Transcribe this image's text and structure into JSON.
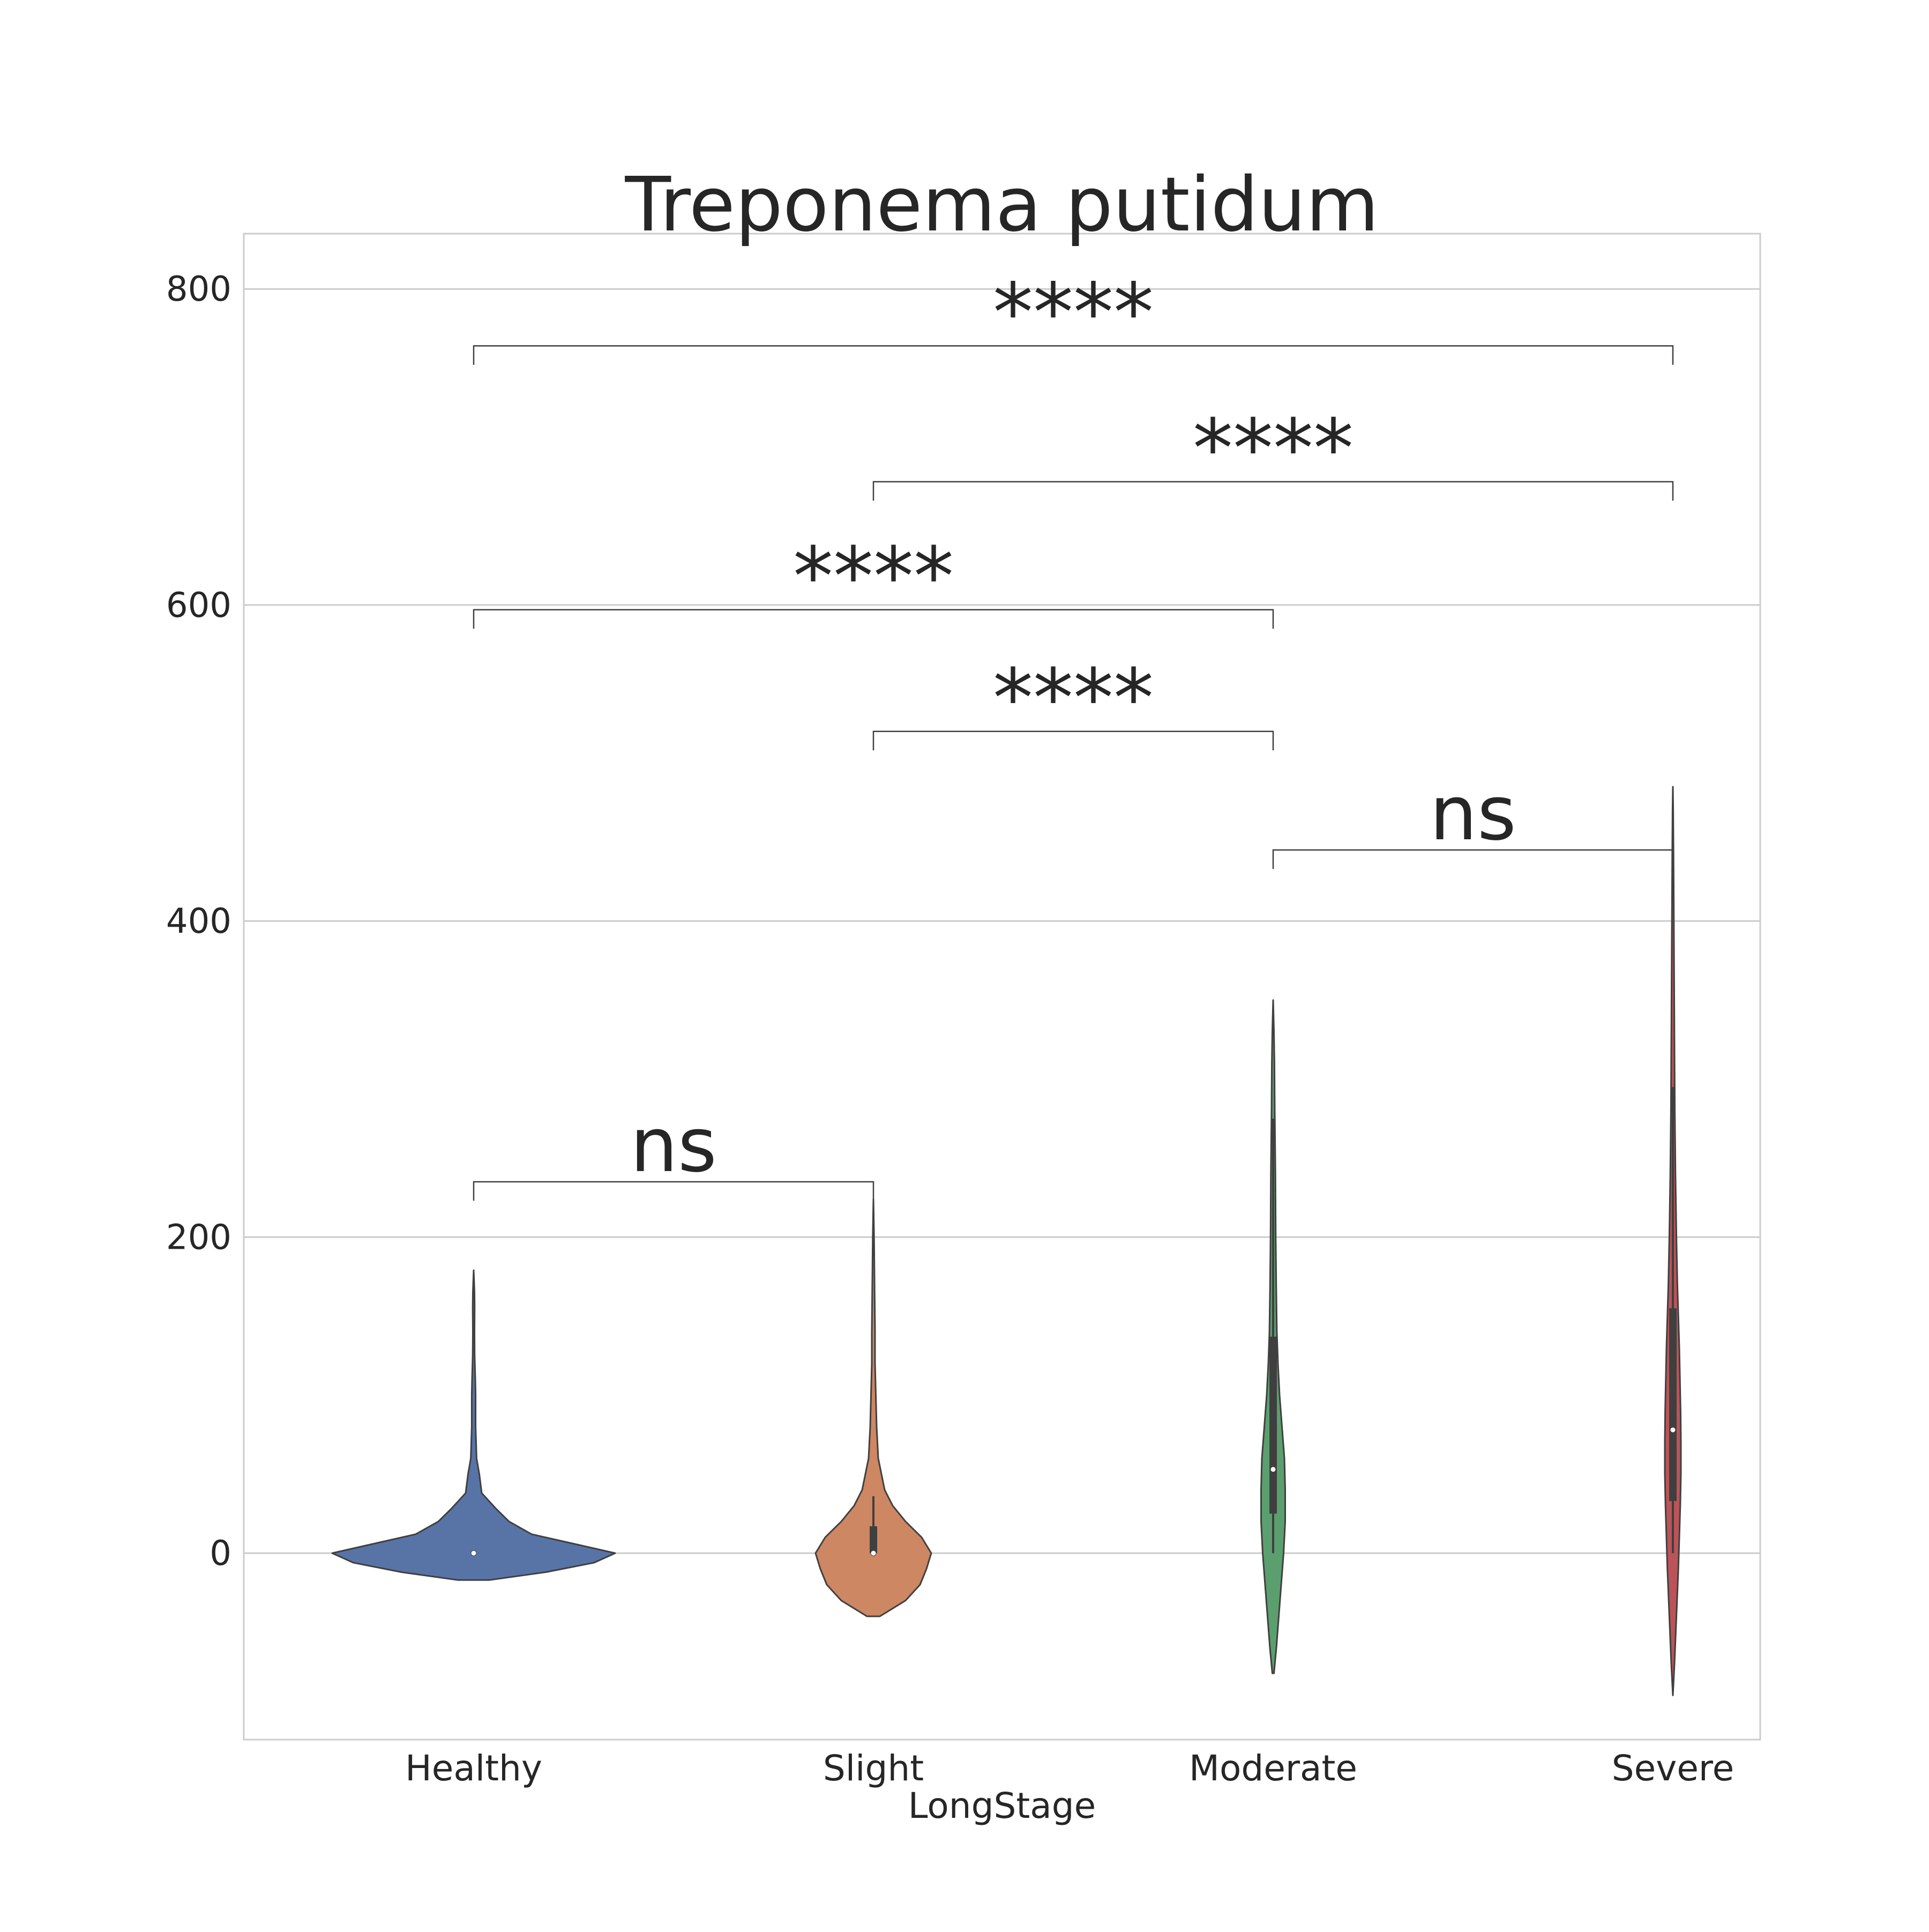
{
  "chart_data": {
    "type": "violin",
    "title": "Treponema putidum",
    "xlabel": "LongStage",
    "ylabel": "",
    "categories": [
      "Healthy",
      "Slight",
      "Moderate",
      "Severe"
    ],
    "ylim": [
      -118,
      835
    ],
    "yticks": [
      0,
      200,
      400,
      600,
      800
    ],
    "grid": "y",
    "colors": {
      "Healthy": "#5874a7",
      "Slight": "#cd8762",
      "Moderate": "#5b9f6e",
      "Severe": "#bb5458",
      "outline": "#404040",
      "grid": "#cccccc",
      "text": "#262626"
    },
    "violins": [
      {
        "category": "Healthy",
        "ymin": -17,
        "ymax": 179,
        "median": 0,
        "q1": 0,
        "q3": 0,
        "whisker_low": 0,
        "whisker_high": 0,
        "profile": [
          [
            -17,
            0.1
          ],
          [
            -12,
            0.45
          ],
          [
            -6,
            0.75
          ],
          [
            0,
            0.88
          ],
          [
            6,
            0.62
          ],
          [
            12,
            0.36
          ],
          [
            20,
            0.22
          ],
          [
            28,
            0.14
          ],
          [
            38,
            0.05
          ],
          [
            50,
            0.035
          ],
          [
            60,
            0.018
          ],
          [
            80,
            0.012
          ],
          [
            100,
            0.012
          ],
          [
            110,
            0.01
          ],
          [
            125,
            0.006
          ],
          [
            140,
            0.005
          ],
          [
            155,
            0.006
          ],
          [
            165,
            0.005
          ],
          [
            179,
            0.0
          ]
        ]
      },
      {
        "category": "Slight",
        "ymin": -40,
        "ymax": 224,
        "median": 0,
        "q1": 0,
        "q3": 17,
        "whisker_low": 0,
        "whisker_high": 36,
        "profile": [
          [
            -40,
            0.04
          ],
          [
            -30,
            0.2
          ],
          [
            -20,
            0.29
          ],
          [
            -10,
            0.33
          ],
          [
            0,
            0.36
          ],
          [
            10,
            0.3
          ],
          [
            20,
            0.2
          ],
          [
            30,
            0.12
          ],
          [
            40,
            0.07
          ],
          [
            60,
            0.03
          ],
          [
            80,
            0.02
          ],
          [
            100,
            0.015
          ],
          [
            120,
            0.01
          ],
          [
            140,
            0.01
          ],
          [
            160,
            0.008
          ],
          [
            180,
            0.006
          ],
          [
            200,
            0.004
          ],
          [
            224,
            0.0
          ]
        ]
      },
      {
        "category": "Moderate",
        "ymin": -76,
        "ymax": 350,
        "median": 53,
        "q1": 25,
        "q3": 137,
        "whisker_low": 0,
        "whisker_high": 275,
        "profile": [
          [
            -76,
            0.005
          ],
          [
            -60,
            0.02
          ],
          [
            -40,
            0.035
          ],
          [
            -20,
            0.05
          ],
          [
            0,
            0.065
          ],
          [
            20,
            0.075
          ],
          [
            40,
            0.075
          ],
          [
            60,
            0.07
          ],
          [
            80,
            0.055
          ],
          [
            100,
            0.04
          ],
          [
            120,
            0.03
          ],
          [
            140,
            0.023
          ],
          [
            170,
            0.019
          ],
          [
            200,
            0.016
          ],
          [
            240,
            0.014
          ],
          [
            280,
            0.01
          ],
          [
            310,
            0.008
          ],
          [
            330,
            0.005
          ],
          [
            350,
            0.0
          ]
        ]
      },
      {
        "category": "Severe",
        "ymin": -90,
        "ymax": 485,
        "median": 78,
        "q1": 33,
        "q3": 155,
        "whisker_low": 0,
        "whisker_high": 295,
        "profile": [
          [
            -90,
            0.0
          ],
          [
            -70,
            0.01
          ],
          [
            -50,
            0.018
          ],
          [
            -30,
            0.026
          ],
          [
            -10,
            0.034
          ],
          [
            10,
            0.04
          ],
          [
            30,
            0.046
          ],
          [
            50,
            0.05
          ],
          [
            70,
            0.05
          ],
          [
            90,
            0.048
          ],
          [
            110,
            0.044
          ],
          [
            130,
            0.04
          ],
          [
            150,
            0.034
          ],
          [
            170,
            0.028
          ],
          [
            200,
            0.022
          ],
          [
            240,
            0.016
          ],
          [
            280,
            0.012
          ],
          [
            320,
            0.01
          ],
          [
            360,
            0.008
          ],
          [
            400,
            0.006
          ],
          [
            440,
            0.004
          ],
          [
            470,
            0.002
          ],
          [
            485,
            0.0
          ]
        ]
      }
    ],
    "annotations": [
      {
        "from": "Healthy",
        "to": "Slight",
        "y": 235,
        "tick": 12,
        "text": "ns"
      },
      {
        "from": "Moderate",
        "to": "Severe",
        "y": 445,
        "tick": 12,
        "text": "ns"
      },
      {
        "from": "Slight",
        "to": "Moderate",
        "y": 520,
        "tick": 12,
        "text": "****"
      },
      {
        "from": "Healthy",
        "to": "Moderate",
        "y": 597,
        "tick": 12,
        "text": "****"
      },
      {
        "from": "Slight",
        "to": "Severe",
        "y": 678,
        "tick": 12,
        "text": "****"
      },
      {
        "from": "Healthy",
        "to": "Severe",
        "y": 764,
        "tick": 12,
        "text": "****"
      }
    ]
  }
}
